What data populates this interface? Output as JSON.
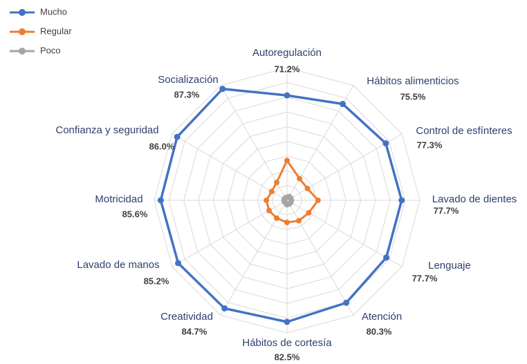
{
  "chart_data": {
    "type": "radar",
    "categories": [
      "Autoregulación",
      "Hábitos alimenticios",
      "Control de esfínteres",
      "Lavado de dientes",
      "Lenguaje",
      "Atención",
      "Hábitos de cortesía",
      "Creatividad",
      "Lavado de manos",
      "Motricidad",
      "Confianza y seguridad",
      "Socialización"
    ],
    "series": [
      {
        "name": "Mucho",
        "color": "#4472c4",
        "values": [
          71.2,
          75.5,
          77.3,
          77.7,
          77.7,
          80.3,
          82.5,
          84.7,
          85.2,
          85.6,
          86.0,
          87.3
        ],
        "value_labels": [
          "71.2%",
          "75.5%",
          "77.3%",
          "77.7%",
          "77.7%",
          "80.3%",
          "82.5%",
          "84.7%",
          "85.2%",
          "85.6%",
          "86.0%",
          "87.3%"
        ]
      },
      {
        "name": "Regular",
        "color": "#ed7d31",
        "values": [
          27,
          17,
          16,
          21,
          17,
          16,
          15,
          14,
          14,
          14,
          12,
          14
        ]
      },
      {
        "name": "Poco",
        "color": "#a5a5a5",
        "values": [
          2,
          3,
          3,
          3,
          3,
          3,
          3,
          2,
          2,
          2,
          2,
          2
        ]
      }
    ],
    "ylim": [
      0,
      90
    ],
    "yticks": [
      0,
      10,
      20,
      30,
      40,
      50,
      60,
      70,
      80,
      90
    ],
    "grid": true,
    "legend": "top-left"
  }
}
